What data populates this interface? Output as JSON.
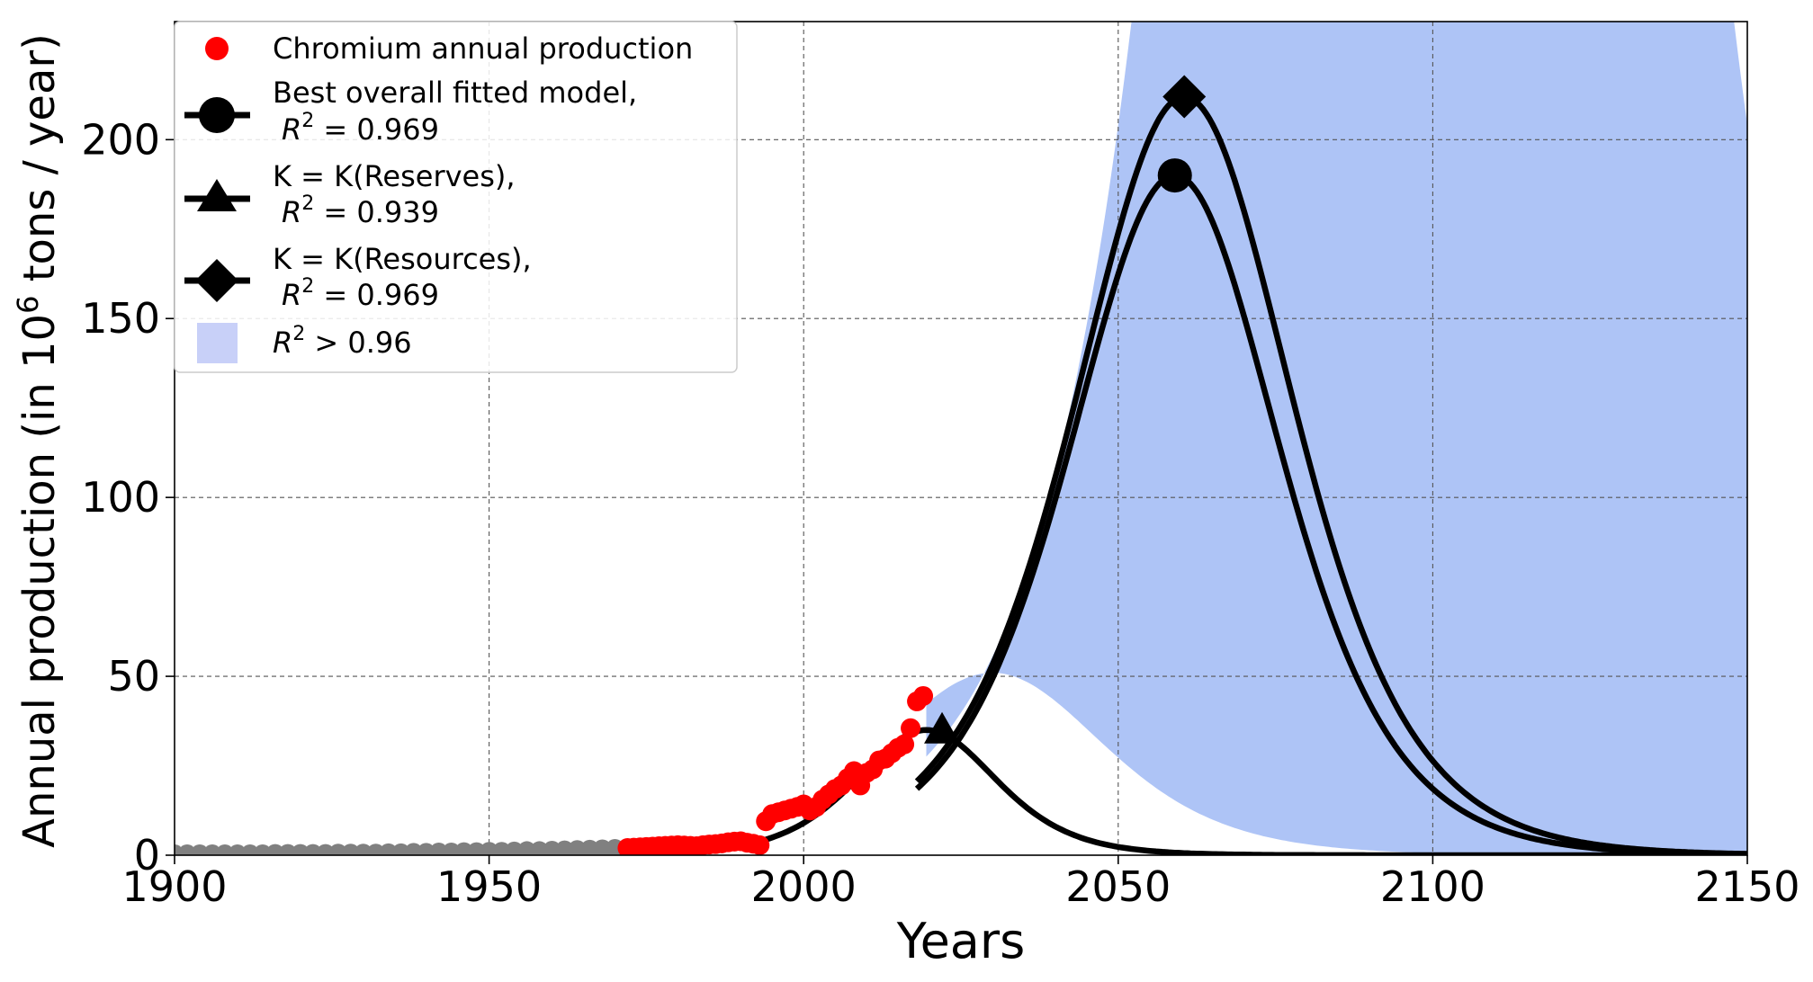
{
  "chart_data": {
    "type": "line",
    "xlabel": "Years",
    "ylabel_prefix": "Annual production (in 10",
    "ylabel_sup": "6",
    "ylabel_suffix": " tons / year)",
    "xlim": [
      1900,
      2150
    ],
    "ylim": [
      0,
      233
    ],
    "xticks": [
      1900,
      1950,
      2000,
      2050,
      2100,
      2150
    ],
    "yticks": [
      0,
      50,
      100,
      150,
      200
    ],
    "grid": true,
    "colors": {
      "band": "#aec4f6",
      "band_legend": "#c8d0f8",
      "data_recent": "#ff0000",
      "data_old": "#808080",
      "model": "#000000"
    },
    "legend": {
      "placement": "top-left",
      "entries": [
        {
          "key": "production",
          "line1": "Chromium annual production"
        },
        {
          "key": "best",
          "line1": "Best overall fitted model,",
          "r2_prefix": "R",
          "r2_sup": "2",
          "r2_value": " = 0.969"
        },
        {
          "key": "reserves",
          "line1": "K = K(Reserves),",
          "r2_prefix": "R",
          "r2_sup": "2",
          "r2_value": " = 0.939"
        },
        {
          "key": "resources",
          "line1": "K = K(Resources),",
          "r2_prefix": "R",
          "r2_sup": "2",
          "r2_value": " = 0.969"
        },
        {
          "key": "band",
          "r2_prefix": "R",
          "r2_sup": "2",
          "r2_value": " > 0.96"
        }
      ]
    },
    "series": [
      {
        "name": "Best overall fitted model",
        "peak_year": 2059,
        "peak_value": 190,
        "marker": "circle"
      },
      {
        "name": "K = K(Reserves)",
        "peak_year": 2020,
        "peak_value": 35,
        "marker": "triangle"
      },
      {
        "name": "K = K(Resources)",
        "peak_year": 2060.5,
        "peak_value": 212,
        "marker": "diamond"
      }
    ],
    "band": {
      "name": "R^2 > 0.96",
      "upper": "unbounded above 2042",
      "lower_peak_year": 2030,
      "lower_peak_value": 51
    },
    "production_old": {
      "years": [
        1900,
        1902,
        1904,
        1906,
        1908,
        1910,
        1912,
        1914,
        1916,
        1918,
        1920,
        1922,
        1924,
        1926,
        1928,
        1930,
        1932,
        1934,
        1936,
        1938,
        1940,
        1942,
        1944,
        1946,
        1948,
        1950,
        1952,
        1954,
        1956,
        1958,
        1960,
        1962,
        1964,
        1966,
        1968,
        1970
      ],
      "values": [
        0.5,
        0.5,
        0.5,
        0.5,
        0.5,
        0.5,
        0.5,
        0.5,
        0.6,
        0.6,
        0.6,
        0.6,
        0.6,
        0.7,
        0.7,
        0.7,
        0.7,
        0.8,
        0.8,
        0.9,
        0.9,
        1.0,
        1.0,
        1.1,
        1.1,
        1.2,
        1.2,
        1.3,
        1.4,
        1.4,
        1.5,
        1.6,
        1.7,
        1.8,
        1.9,
        2.0
      ]
    },
    "production_recent": {
      "years": [
        1972,
        1973,
        1974,
        1975,
        1976,
        1977,
        1978,
        1979,
        1980,
        1981,
        1982,
        1983,
        1984,
        1985,
        1986,
        1987,
        1988,
        1989,
        1990,
        1991,
        1992,
        1993,
        1994,
        1995,
        1996,
        1997,
        1998,
        1999,
        2000,
        2001,
        2002,
        2003,
        2004,
        2005,
        2006,
        2007,
        2008,
        2009,
        2010,
        2011,
        2012,
        2013,
        2014,
        2015,
        2016,
        2017,
        2018,
        2019
      ],
      "values": [
        2.0,
        2.1,
        2.2,
        2.3,
        2.4,
        2.5,
        2.6,
        2.7,
        2.8,
        2.7,
        2.6,
        2.5,
        2.8,
        3.0,
        3.1,
        3.3,
        3.6,
        3.8,
        3.9,
        3.5,
        3.2,
        2.8,
        9.5,
        11.5,
        12.0,
        12.5,
        13.0,
        13.5,
        14.2,
        12.5,
        13.5,
        15.5,
        17.0,
        18.5,
        19.5,
        21.5,
        23.5,
        19.5,
        23.0,
        24.0,
        26.5,
        27.0,
        28.5,
        30.0,
        31.0,
        35.5,
        43.0,
        44.5
      ]
    }
  }
}
